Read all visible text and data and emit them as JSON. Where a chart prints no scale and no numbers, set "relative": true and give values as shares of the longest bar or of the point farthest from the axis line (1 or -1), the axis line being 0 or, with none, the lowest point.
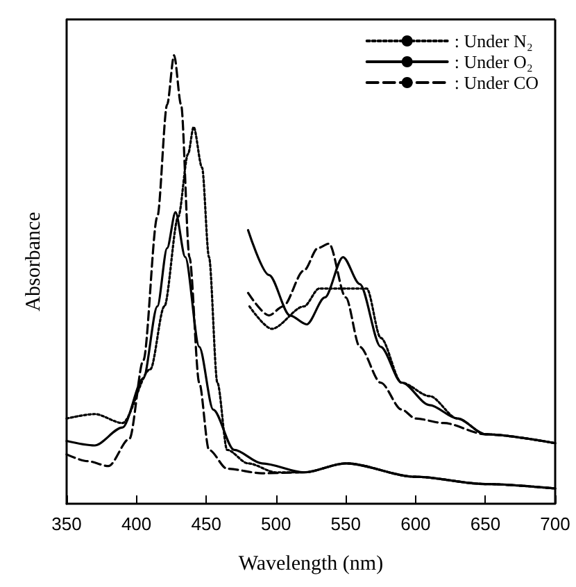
{
  "chart_data": {
    "type": "line",
    "xlabel": "Wavelength (nm)",
    "ylabel": "Absorbance",
    "relative": true,
    "xlim": [
      350,
      700
    ],
    "xticks": [
      350,
      400,
      450,
      500,
      550,
      600,
      650,
      700
    ],
    "grid": false,
    "legend": "top right",
    "marker": "none",
    "series": [
      {
        "name": ": Under N₂",
        "color": "#000000",
        "line_style": "dotted",
        "x": [
          350,
          370,
          390,
          410,
          420,
          430,
          437,
          441,
          447,
          452,
          458,
          465,
          480,
          500,
          520,
          550,
          600,
          650,
          700
        ],
        "values": [
          0.19,
          0.2,
          0.18,
          0.3,
          0.44,
          0.64,
          0.78,
          0.84,
          0.75,
          0.55,
          0.27,
          0.12,
          0.09,
          0.07,
          0.07,
          0.09,
          0.06,
          0.044,
          0.034
        ]
      },
      {
        "name": ": Under O₂",
        "color": "#000000",
        "line_style": "solid",
        "x": [
          350,
          370,
          390,
          405,
          415,
          422,
          428,
          435,
          445,
          455,
          470,
          490,
          520,
          550,
          600,
          650,
          700
        ],
        "values": [
          0.14,
          0.13,
          0.17,
          0.28,
          0.44,
          0.57,
          0.65,
          0.55,
          0.35,
          0.21,
          0.12,
          0.09,
          0.07,
          0.09,
          0.06,
          0.044,
          0.034
        ]
      },
      {
        "name": ": Under CO",
        "color": "#000000",
        "line_style": "dashed",
        "x": [
          350,
          365,
          380,
          395,
          405,
          415,
          422,
          427,
          432,
          438,
          445,
          452,
          465,
          490,
          520,
          550,
          600,
          650,
          700
        ],
        "values": [
          0.11,
          0.095,
          0.084,
          0.145,
          0.32,
          0.64,
          0.89,
          1.0,
          0.89,
          0.55,
          0.27,
          0.12,
          0.078,
          0.068,
          0.07,
          0.09,
          0.06,
          0.044,
          0.034
        ]
      },
      {
        "color": "#000000",
        "line_style": "dotted",
        "x": [
          481,
          497,
          520,
          531,
          550,
          565,
          575,
          590,
          610,
          630,
          650,
          700
        ],
        "values": [
          0.44,
          0.39,
          0.44,
          0.48,
          0.48,
          0.48,
          0.37,
          0.27,
          0.24,
          0.19,
          0.155,
          0.135
        ]
      },
      {
        "color": "#000000",
        "line_style": "solid",
        "x": [
          480,
          495,
          510,
          522,
          535,
          548,
          560,
          575,
          590,
          610,
          630,
          650,
          700
        ],
        "values": [
          0.61,
          0.51,
          0.42,
          0.4,
          0.46,
          0.55,
          0.49,
          0.35,
          0.27,
          0.22,
          0.19,
          0.155,
          0.135
        ]
      },
      {
        "color": "#000000",
        "line_style": "dashed",
        "x": [
          480,
          495,
          505,
          520,
          530,
          538,
          550,
          560,
          575,
          590,
          600,
          620,
          650,
          700
        ],
        "values": [
          0.47,
          0.42,
          0.44,
          0.52,
          0.57,
          0.58,
          0.46,
          0.35,
          0.27,
          0.21,
          0.19,
          0.18,
          0.155,
          0.135
        ]
      }
    ]
  }
}
